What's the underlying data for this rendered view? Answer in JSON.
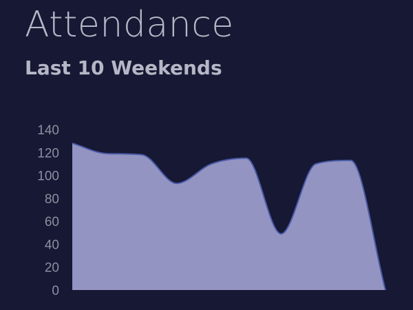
{
  "header": {
    "title": "Attendance",
    "subtitle": "Last 10 Weekends"
  },
  "chart_data": {
    "type": "area",
    "title": "Attendance",
    "subtitle": "Last 10 Weekends",
    "x": [
      1,
      2,
      3,
      4,
      5,
      6,
      7,
      8,
      9,
      10
    ],
    "series": [
      {
        "values": [
          128,
          119,
          118,
          93,
          110,
          115,
          49,
          110,
          113,
          0
        ],
        "line_color": "#4a5aa8",
        "fill_color": "#9394c1"
      }
    ],
    "yticks": [
      "0",
      "20",
      "40",
      "60",
      "80",
      "100",
      "120",
      "140"
    ],
    "ylim": [
      0,
      140
    ],
    "xlabel": "",
    "ylabel": "",
    "grid": false,
    "legend": "none",
    "background": "#161834",
    "text_color": "#b6b7c6"
  }
}
